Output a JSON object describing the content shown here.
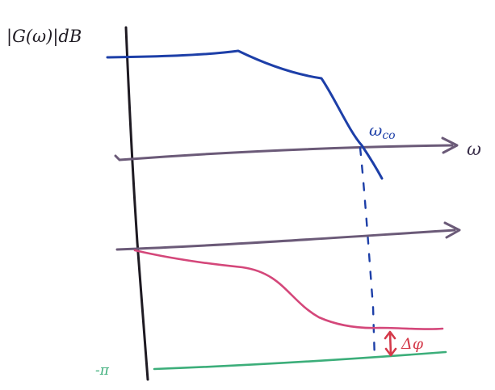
{
  "labels": {
    "magnitude_axis": "|G(ω)|dB",
    "omega": "ω",
    "crossover": "ω",
    "crossover_sub": "co",
    "phase_margin": "Δφ",
    "minus_pi": "-π"
  },
  "colors": {
    "axis": "#1e1a22",
    "freq_axis": "#6b5a78",
    "magnitude": "#1d3fa8",
    "phase": "#d4477a",
    "reference": "#3cae7a",
    "margin": "#d43a4a",
    "guide": "#1d3fa8",
    "axis_label": "#3a2f4a"
  }
}
